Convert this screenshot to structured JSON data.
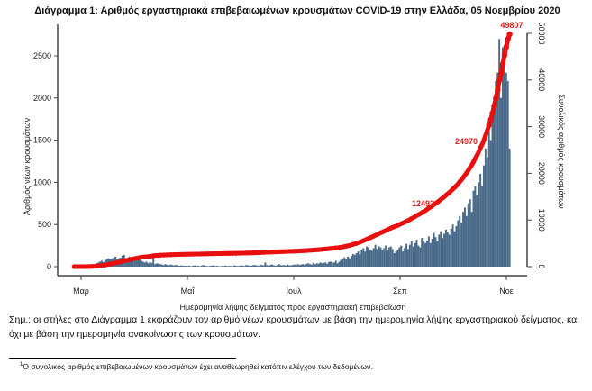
{
  "chart_data": {
    "type": "bar+line",
    "title": "Διάγραμμα 1: Αριθμός εργαστηριακά επιβεβαιωμένων κρουσμάτων COVID-19 στην Ελλάδα, 05 Νοεμβρίου 2020",
    "xlabel": "Ημερομηνία λήψης δείγματος προς εργαστηριακή επιβεβαίωση",
    "ylabel_left": "Αριθμός νέων κρουσμάτων",
    "ylabel_right": "Συνολικός αριθμός κρουσμάτων",
    "x_ticks": [
      "Μαρ",
      "Μαΐ",
      "Ιουλ",
      "Σεπ",
      "Νοε"
    ],
    "y_left_ticks": [
      "0",
      "500",
      "1000",
      "1500",
      "2000",
      "2500"
    ],
    "y_left_lim": [
      0,
      2800
    ],
    "y_right_ticks": [
      "0",
      "10000",
      "20000",
      "30000",
      "40000",
      "50000"
    ],
    "y_right_lim": [
      0,
      50000
    ],
    "start_date": "2020-02-26",
    "end_date": "2020-11-05",
    "daily_new_cases": [
      1,
      0,
      1,
      3,
      2,
      3,
      5,
      8,
      10,
      12,
      20,
      25,
      30,
      40,
      50,
      60,
      70,
      55,
      80,
      90,
      100,
      85,
      95,
      110,
      120,
      90,
      100,
      105,
      130,
      140,
      100,
      95,
      120,
      110,
      90,
      100,
      90,
      80,
      130,
      70,
      60,
      50,
      60,
      40,
      55,
      45,
      150,
      30,
      40,
      35,
      30,
      25,
      20,
      30,
      20,
      15,
      25,
      20,
      15,
      20,
      15,
      10,
      15,
      12,
      10,
      10,
      8,
      12,
      5,
      10,
      15,
      8,
      10,
      6,
      12,
      20,
      10,
      8,
      5,
      10,
      12,
      15,
      8,
      10,
      6,
      5,
      10,
      8,
      12,
      6,
      10,
      8,
      5,
      15,
      10,
      8,
      10,
      15,
      12,
      8,
      20,
      15,
      10,
      12,
      18,
      20,
      15,
      10,
      25,
      20,
      15,
      50,
      18,
      12,
      20,
      25,
      15,
      10,
      20,
      30,
      18,
      15,
      20,
      12,
      25,
      15,
      15,
      20,
      25,
      15,
      30,
      20,
      25,
      30,
      20,
      35,
      40,
      30,
      25,
      45,
      30,
      40,
      35,
      50,
      40,
      45,
      50,
      35,
      55,
      60,
      45,
      50,
      70,
      40,
      60,
      80,
      90,
      110,
      90,
      120,
      100,
      130,
      150,
      140,
      160,
      180,
      150,
      200,
      220,
      180,
      240,
      230,
      200,
      190,
      220,
      260,
      210,
      240,
      230,
      200,
      220,
      250,
      200,
      230,
      240,
      210,
      160,
      180,
      200,
      230,
      250,
      180,
      220,
      270,
      210,
      260,
      300,
      240,
      280,
      320,
      250,
      230,
      340,
      300,
      280,
      310,
      360,
      280,
      330,
      400,
      350,
      300,
      380,
      420,
      340,
      390,
      440,
      410,
      380,
      450,
      500,
      420,
      480,
      550,
      600,
      520,
      650,
      700,
      600,
      750,
      800,
      650,
      900,
      950,
      850,
      1000,
      1100,
      950,
      1200,
      1400,
      1300,
      1600,
      1500,
      1800,
      2000,
      2200,
      2300,
      2700,
      2000,
      2600,
      2500,
      2300,
      2200,
      1400
    ],
    "cumulative_total": 49807,
    "annotations": [
      "12493",
      "24970",
      "49807"
    ],
    "colors": {
      "bars": "#4a6b8a",
      "line": "#e8100f",
      "annotation": "#d91f1f"
    }
  },
  "note": "Σημ.: οι στήλες στο Διάγραμμα 1 εκφράζουν τον αριθμό νέων κρουσμάτων με βάση την ημερομηνία λήψης εργαστηριακού δείγματος, και όχι με βάση την ημερομηνία ανακοίνωσης των κρουσμάτων.",
  "footnote": {
    "mark": "1",
    "text": "Ο συνολικός αριθμός επιβεβαιωμένων κρουσμάτων έχει αναθεωρηθεί κατόπιν ελέγχου των δεδομένων."
  }
}
